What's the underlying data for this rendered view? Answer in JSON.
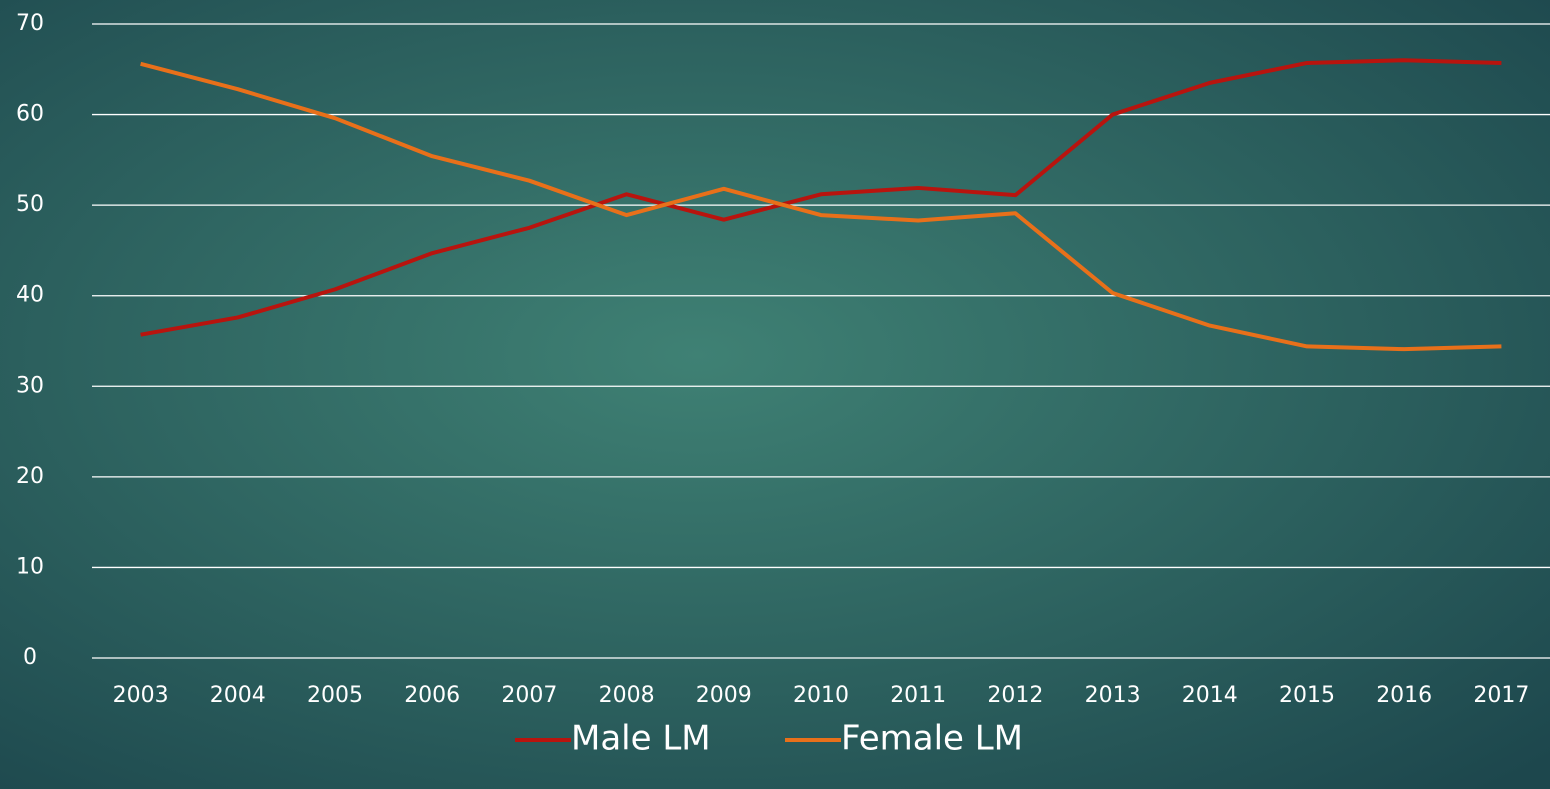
{
  "chart_data": {
    "type": "line",
    "categories": [
      "2003",
      "2004",
      "2005",
      "2006",
      "2007",
      "2008",
      "2009",
      "2010",
      "2011",
      "2012",
      "2013",
      "2014",
      "2015",
      "2016",
      "2017"
    ],
    "series": [
      {
        "name": "Male LM",
        "color": "#b8140e",
        "values": [
          35.7,
          37.6,
          40.7,
          44.7,
          47.5,
          51.2,
          48.4,
          51.2,
          51.9,
          51.1,
          60.0,
          63.5,
          65.7,
          66.0,
          65.7
        ]
      },
      {
        "name": "Female LM",
        "color": "#e8701a",
        "values": [
          65.6,
          62.8,
          59.6,
          55.4,
          52.7,
          48.9,
          51.8,
          48.9,
          48.3,
          49.1,
          40.3,
          36.7,
          34.4,
          34.1,
          34.4
        ]
      }
    ],
    "ylim": [
      0,
      70
    ],
    "yticks": [
      0,
      10,
      20,
      30,
      40,
      50,
      60,
      70
    ],
    "grid": true,
    "legend": "bottom"
  }
}
